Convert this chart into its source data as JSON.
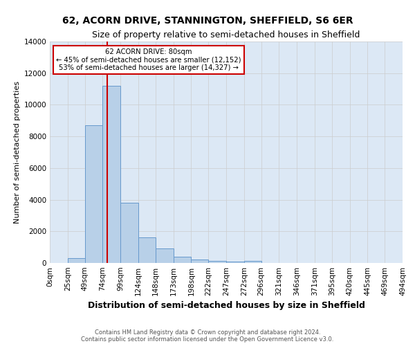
{
  "title": "62, ACORN DRIVE, STANNINGTON, SHEFFIELD, S6 6ER",
  "subtitle": "Size of property relative to semi-detached houses in Sheffield",
  "xlabel": "Distribution of semi-detached houses by size in Sheffield",
  "ylabel": "Number of semi-detached properties",
  "footnote": "Contains HM Land Registry data © Crown copyright and database right 2024.\nContains public sector information licensed under the Open Government Licence v3.0.",
  "bin_edges": [
    0,
    25,
    49,
    74,
    99,
    124,
    148,
    173,
    198,
    222,
    247,
    272,
    296,
    321,
    346,
    371,
    395,
    420,
    445,
    469,
    494
  ],
  "bin_labels": [
    "0sqm",
    "25sqm",
    "49sqm",
    "74sqm",
    "99sqm",
    "124sqm",
    "148sqm",
    "173sqm",
    "198sqm",
    "222sqm",
    "247sqm",
    "272sqm",
    "296sqm",
    "321sqm",
    "346sqm",
    "371sqm",
    "395sqm",
    "420sqm",
    "445sqm",
    "469sqm",
    "494sqm"
  ],
  "bar_heights": [
    0,
    300,
    8700,
    11200,
    3800,
    1600,
    900,
    380,
    200,
    130,
    90,
    130,
    0,
    0,
    0,
    0,
    0,
    0,
    0,
    0
  ],
  "bar_color": "#b8d0e8",
  "bar_edge_color": "#6699cc",
  "property_value": 80,
  "red_line_color": "#cc0000",
  "annotation_title": "62 ACORN DRIVE: 80sqm",
  "annotation_line1": "← 45% of semi-detached houses are smaller (12,152)",
  "annotation_line2": "53% of semi-detached houses are larger (14,327) →",
  "annotation_box_color": "#cc0000",
  "ylim": [
    0,
    14000
  ],
  "yticks": [
    0,
    2000,
    4000,
    6000,
    8000,
    10000,
    12000,
    14000
  ],
  "bg_color": "#dce8f5",
  "plot_bg_color": "#ffffff",
  "title_fontsize": 10,
  "subtitle_fontsize": 9,
  "ylabel_fontsize": 8,
  "xlabel_fontsize": 9,
  "tick_fontsize": 7.5,
  "footnote_fontsize": 6
}
